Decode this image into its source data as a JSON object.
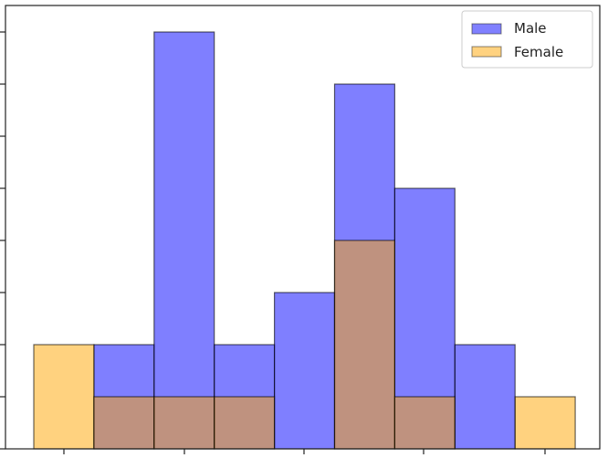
{
  "chart_data": {
    "type": "bar",
    "title": "",
    "xlabel": "",
    "ylabel": "",
    "histogram": true,
    "bin_count": 9,
    "bins": [
      1,
      2,
      3,
      4,
      5,
      6,
      7,
      8,
      9
    ],
    "series": [
      {
        "name": "Male",
        "color": "#0000ff",
        "alpha": 0.5,
        "values": [
          0,
          2,
          8,
          2,
          3,
          7,
          5,
          2,
          0
        ]
      },
      {
        "name": "Female",
        "color": "#ffa500",
        "alpha": 0.5,
        "values": [
          2,
          1,
          1,
          1,
          0,
          4,
          1,
          0,
          1
        ]
      }
    ],
    "ylim": [
      0,
      8.5
    ],
    "y_ticks": [
      0,
      1,
      2,
      3,
      4,
      5,
      6,
      7,
      8
    ],
    "x_tick_count": 5,
    "tick_labels_visible": false,
    "grid": false,
    "legend_position": "upper right"
  },
  "legend": {
    "male_label": "Male",
    "female_label": "Female"
  }
}
